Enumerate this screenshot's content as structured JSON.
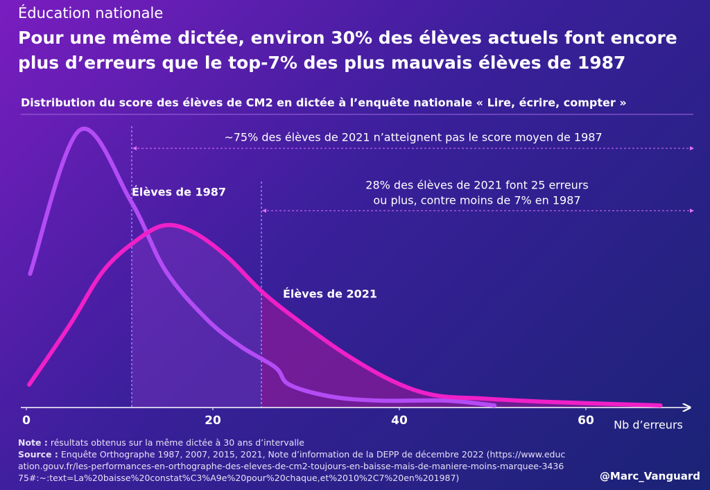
{
  "header": {
    "kicker": "Éducation nationale",
    "title": "Pour une même dictée, environ 30% des élèves actuels font encore plus d’erreurs que le top-7% des plus mauvais élèves de 1987"
  },
  "chart_data": {
    "type": "line",
    "title": "Distribution du score des élèves de CM2 en dictée à l’enquête nationale « Lire, écrire, compter »",
    "x_label": "Nb d’erreurs",
    "xlim": [
      0,
      70
    ],
    "xticks": [
      0,
      20,
      40,
      60
    ],
    "series": [
      {
        "name": "Élèves de 1987",
        "color": "#b44cf5",
        "x": [
          0.4,
          5.7,
          11.2,
          14.9,
          19.3,
          23,
          26.7,
          28.2,
          32.6,
          37.8,
          45,
          50.2
        ],
        "values": [
          193,
          400,
          298,
          198,
          128,
          88,
          58,
          33,
          16,
          10,
          10,
          3
        ]
      },
      {
        "name": "Élèves de 2021",
        "color": "#f020c8",
        "x": [
          0.3,
          4.6,
          8.3,
          12,
          14.9,
          17.9,
          21.5,
          25.2,
          28.9,
          34.1,
          39.3,
          43.7,
          48.9,
          56.2,
          68
        ],
        "values": [
          33,
          118,
          198,
          243,
          263,
          253,
          218,
          168,
          128,
          78,
          38,
          18,
          13,
          8,
          3
        ]
      }
    ],
    "annotations": [
      "~75% des élèves de 2021 n’atteignent pas le score moyen de 1987",
      "28% des élèves de 2021 font 25 erreurs",
      "ou plus, contre moins de 7% en 1987"
    ]
  },
  "footer": {
    "note_label": "Note :",
    "note": "résultats obtenus sur la même dictée à 30 ans d’intervalle",
    "source_label": "Source :",
    "source": "Enquête Orthographe 1987, 2007, 2015, 2021, Note d’information de la DEPP de décembre 2022 (https://www.education.gouv.fr/les-performances-en-orthographe-des-eleves-de-cm2-toujours-en-baisse-mais-de-maniere-moins-marquee-343675#:~:text=La%20baisse%20constat%C3%A9e%20pour%20chaque,et%2010%2C7%20en%201987)",
    "handle": "@Marc_Vanguard"
  }
}
